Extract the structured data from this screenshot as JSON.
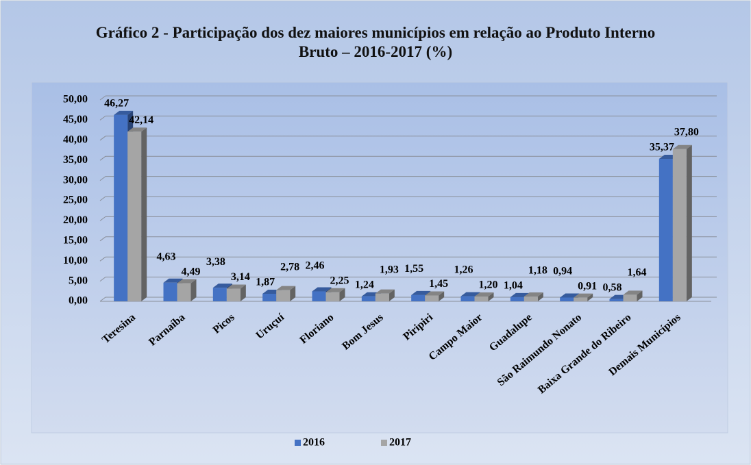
{
  "chart_data": {
    "type": "bar3d",
    "title": "Gráfico 2 - Participação dos dez maiores municípios em relação ao Produto Interno Bruto – 2016-2017 (%)",
    "categories": [
      "Teresina",
      "Parnaíba",
      "Picos",
      "Uruçuí",
      "Floriano",
      "Bom Jesus",
      "Piripiri",
      "Campo Maior",
      "Guadalupe",
      "São Raimundo Nonato",
      "Baixa Grande do Ribeiro",
      "Demais Municípios"
    ],
    "series": [
      {
        "name": "2016",
        "color": "#4472c4",
        "values": [
          46.27,
          4.63,
          3.38,
          1.87,
          2.46,
          1.24,
          1.55,
          1.26,
          1.04,
          0.94,
          0.58,
          35.37
        ],
        "value_labels": [
          "46,27",
          "4,63",
          "3,38",
          "1,87",
          "2,46",
          "1,24",
          "1,55",
          "1,26",
          "1,04",
          "0,94",
          "0,58",
          "35,37"
        ]
      },
      {
        "name": "2017",
        "color": "#a5a5a5",
        "values": [
          42.14,
          4.49,
          3.14,
          2.78,
          2.25,
          1.93,
          1.45,
          1.2,
          1.18,
          0.91,
          1.64,
          37.8
        ],
        "value_labels": [
          "42,14",
          "4,49",
          "3,14",
          "2,78",
          "2,25",
          "1,93",
          "1,45",
          "1,20",
          "1,18",
          "0,91",
          "1,64",
          "37,80"
        ]
      }
    ],
    "ylim": [
      0,
      50
    ],
    "yticks": [
      {
        "value": 0,
        "label": "0,00"
      },
      {
        "value": 5,
        "label": "5,00"
      },
      {
        "value": 10,
        "label": "10,00"
      },
      {
        "value": 15,
        "label": "15,00"
      },
      {
        "value": 20,
        "label": "20,00"
      },
      {
        "value": 25,
        "label": "25,00"
      },
      {
        "value": 30,
        "label": "30,00"
      },
      {
        "value": 35,
        "label": "35,00"
      },
      {
        "value": 40,
        "label": "40,00"
      },
      {
        "value": 45,
        "label": "45,00"
      },
      {
        "value": 50,
        "label": "50,00"
      }
    ],
    "grid": true,
    "legend": "bottom"
  }
}
